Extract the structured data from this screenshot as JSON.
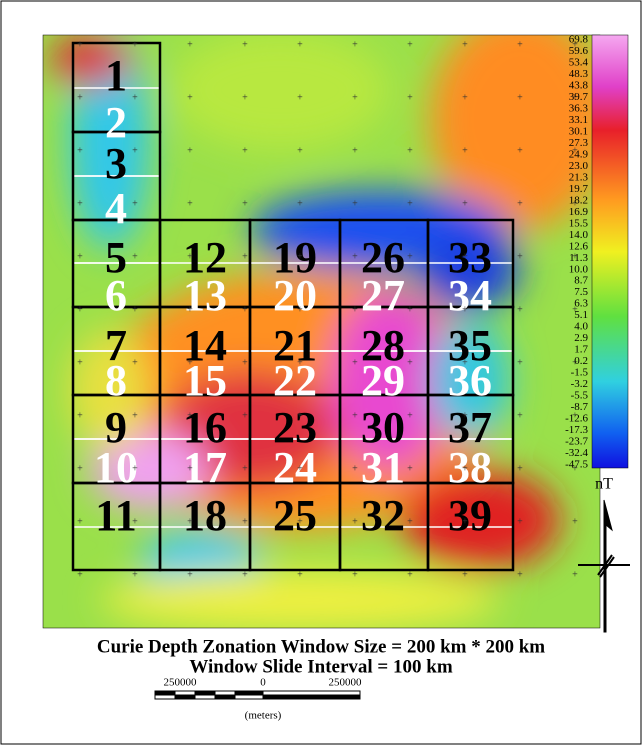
{
  "title_line1": "Curie Depth Zonation Window Size = 200 km * 200 km",
  "title_line2": "Window Slide Interval = 100 km",
  "windows": [
    "1",
    "2",
    "3",
    "4",
    "5",
    "6",
    "7",
    "8",
    "9",
    "10",
    "11",
    "12",
    "13",
    "14",
    "15",
    "16",
    "17",
    "18",
    "19",
    "20",
    "21",
    "22",
    "23",
    "24",
    "25",
    "26",
    "27",
    "28",
    "29",
    "30",
    "31",
    "32",
    "33",
    "34",
    "35",
    "36",
    "37",
    "38",
    "39"
  ],
  "colorbar": {
    "labels": [
      "69.8",
      "59.6",
      "53.4",
      "48.3",
      "43.8",
      "39.7",
      "36.3",
      "33.1",
      "30.1",
      "27.3",
      "24.9",
      "23.0",
      "21.3",
      "19.7",
      "18.2",
      "16.9",
      "15.5",
      "14.0",
      "12.6",
      "11.3",
      "10.0",
      "8.7",
      "7.5",
      "6.3",
      "5.1",
      "4.0",
      "2.9",
      "1.7",
      "0.2",
      "-1.5",
      "-3.2",
      "-5.5",
      "-8.7",
      "-12.6",
      "-17.3",
      "-23.7",
      "-32.4",
      "-47.5"
    ],
    "unit": "nT"
  },
  "scale_bar": {
    "labels": [
      "250000",
      "0",
      "250000"
    ],
    "unit": "(meters)"
  }
}
